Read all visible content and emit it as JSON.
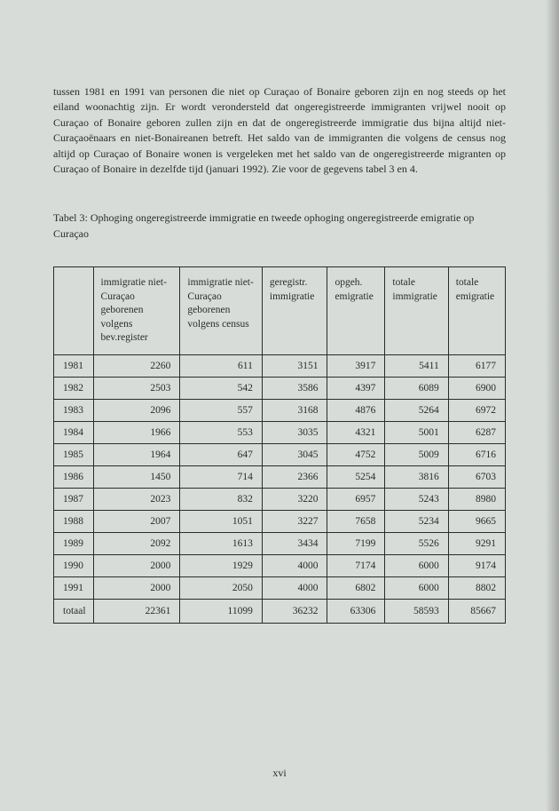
{
  "paragraph": "tussen 1981 en 1991 van personen die niet op Curaçao of Bonaire geboren zijn en nog steeds op het eiland woonachtig zijn. Er wordt verondersteld dat ongeregistreerde immigranten vrijwel nooit op Curaçao of Bonaire geboren zullen zijn en dat de ongeregistreerde immigratie dus bijna altijd niet-Curaçaoënaars en niet-Bonaireanen betreft. Het saldo van de immigranten die volgens de census nog altijd op Curaçao of Bonaire wonen is vergeleken met het saldo van de ongeregistreerde migranten op Curaçao of Bonaire in dezelfde tijd (januari 1992). Zie voor de gegevens tabel 3 en 4.",
  "table_caption": "Tabel 3: Ophoging ongeregistreerde immigratie en tweede ophoging ongeregistreerde emigratie op Curaçao",
  "headers": {
    "col0": "",
    "col1": "immigratie niet-Curaçao geborenen volgens bev.register",
    "col2": "immigratie niet-Curaçao geborenen volgens census",
    "col3": "geregistr. immigratie",
    "col4": "opgeh. emigratie",
    "col5": "totale immigratie",
    "col6": "totale emigratie"
  },
  "rows": [
    {
      "year": "1981",
      "c1": "2260",
      "c2": "611",
      "c3": "3151",
      "c4": "3917",
      "c5": "5411",
      "c6": "6177"
    },
    {
      "year": "1982",
      "c1": "2503",
      "c2": "542",
      "c3": "3586",
      "c4": "4397",
      "c5": "6089",
      "c6": "6900"
    },
    {
      "year": "1983",
      "c1": "2096",
      "c2": "557",
      "c3": "3168",
      "c4": "4876",
      "c5": "5264",
      "c6": "6972"
    },
    {
      "year": "1984",
      "c1": "1966",
      "c2": "553",
      "c3": "3035",
      "c4": "4321",
      "c5": "5001",
      "c6": "6287"
    },
    {
      "year": "1985",
      "c1": "1964",
      "c2": "647",
      "c3": "3045",
      "c4": "4752",
      "c5": "5009",
      "c6": "6716"
    },
    {
      "year": "1986",
      "c1": "1450",
      "c2": "714",
      "c3": "2366",
      "c4": "5254",
      "c5": "3816",
      "c6": "6703"
    },
    {
      "year": "1987",
      "c1": "2023",
      "c2": "832",
      "c3": "3220",
      "c4": "6957",
      "c5": "5243",
      "c6": "8980"
    },
    {
      "year": "1988",
      "c1": "2007",
      "c2": "1051",
      "c3": "3227",
      "c4": "7658",
      "c5": "5234",
      "c6": "9665"
    },
    {
      "year": "1989",
      "c1": "2092",
      "c2": "1613",
      "c3": "3434",
      "c4": "7199",
      "c5": "5526",
      "c6": "9291"
    },
    {
      "year": "1990",
      "c1": "2000",
      "c2": "1929",
      "c3": "4000",
      "c4": "7174",
      "c5": "6000",
      "c6": "9174"
    },
    {
      "year": "1991",
      "c1": "2000",
      "c2": "2050",
      "c3": "4000",
      "c4": "6802",
      "c5": "6000",
      "c6": "8802"
    }
  ],
  "total": {
    "year": "totaal",
    "c1": "22361",
    "c2": "11099",
    "c3": "36232",
    "c4": "63306",
    "c5": "58593",
    "c6": "85667"
  },
  "page_number": "xvi"
}
